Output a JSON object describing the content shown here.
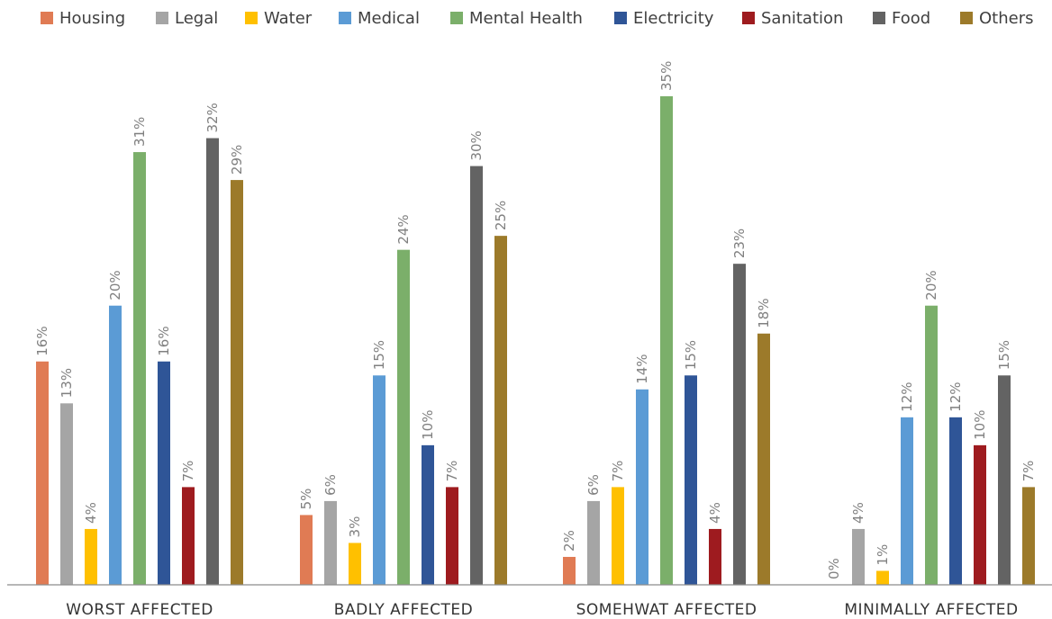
{
  "chart_data": {
    "type": "bar",
    "categories": [
      "WORST AFFECTED",
      "BADLY AFFECTED",
      "SOMEHWAT AFFECTED",
      "MINIMALLY AFFECTED"
    ],
    "series": [
      {
        "name": "Housing",
        "color": "#E07B54",
        "values": [
          16,
          5,
          2,
          0
        ],
        "labels": [
          "16%",
          "5%",
          "2%",
          "0%"
        ]
      },
      {
        "name": "Legal",
        "color": "#A5A5A5",
        "values": [
          13,
          6,
          6,
          4
        ],
        "labels": [
          "13%",
          "6%",
          "6%",
          "4%"
        ]
      },
      {
        "name": "Water",
        "color": "#FFC000",
        "values": [
          4,
          3,
          7,
          1
        ],
        "labels": [
          "4%",
          "3%",
          "7%",
          "1%"
        ]
      },
      {
        "name": "Medical",
        "color": "#5B9BD5",
        "values": [
          20,
          15,
          14,
          12
        ],
        "labels": [
          "20%",
          "15%",
          "14%",
          "12%"
        ]
      },
      {
        "name": "Mental Health",
        "color": "#7BAF6A",
        "values": [
          31,
          24,
          35,
          20
        ],
        "labels": [
          "31%",
          "24%",
          "35%",
          "20%"
        ]
      },
      {
        "name": "Electricity",
        "color": "#2F5597",
        "values": [
          16,
          10,
          15,
          12
        ],
        "labels": [
          "16%",
          "10%",
          "15%",
          "12%"
        ]
      },
      {
        "name": "Sanitation",
        "color": "#9E1B1F",
        "values": [
          7,
          7,
          4,
          10
        ],
        "labels": [
          "7%",
          "7%",
          "4%",
          "10%"
        ]
      },
      {
        "name": "Food",
        "color": "#636363",
        "values": [
          32,
          30,
          23,
          15
        ],
        "labels": [
          "32%",
          "30%",
          "23%",
          "15%"
        ]
      },
      {
        "name": "Others",
        "color": "#9C7A2A",
        "values": [
          29,
          25,
          18,
          7
        ],
        "labels": [
          "29%",
          "25%",
          "18%",
          "7%"
        ]
      }
    ],
    "ylim": [
      0,
      35
    ],
    "legend_position": "top",
    "grid": false,
    "xlabel": "",
    "ylabel": ""
  }
}
